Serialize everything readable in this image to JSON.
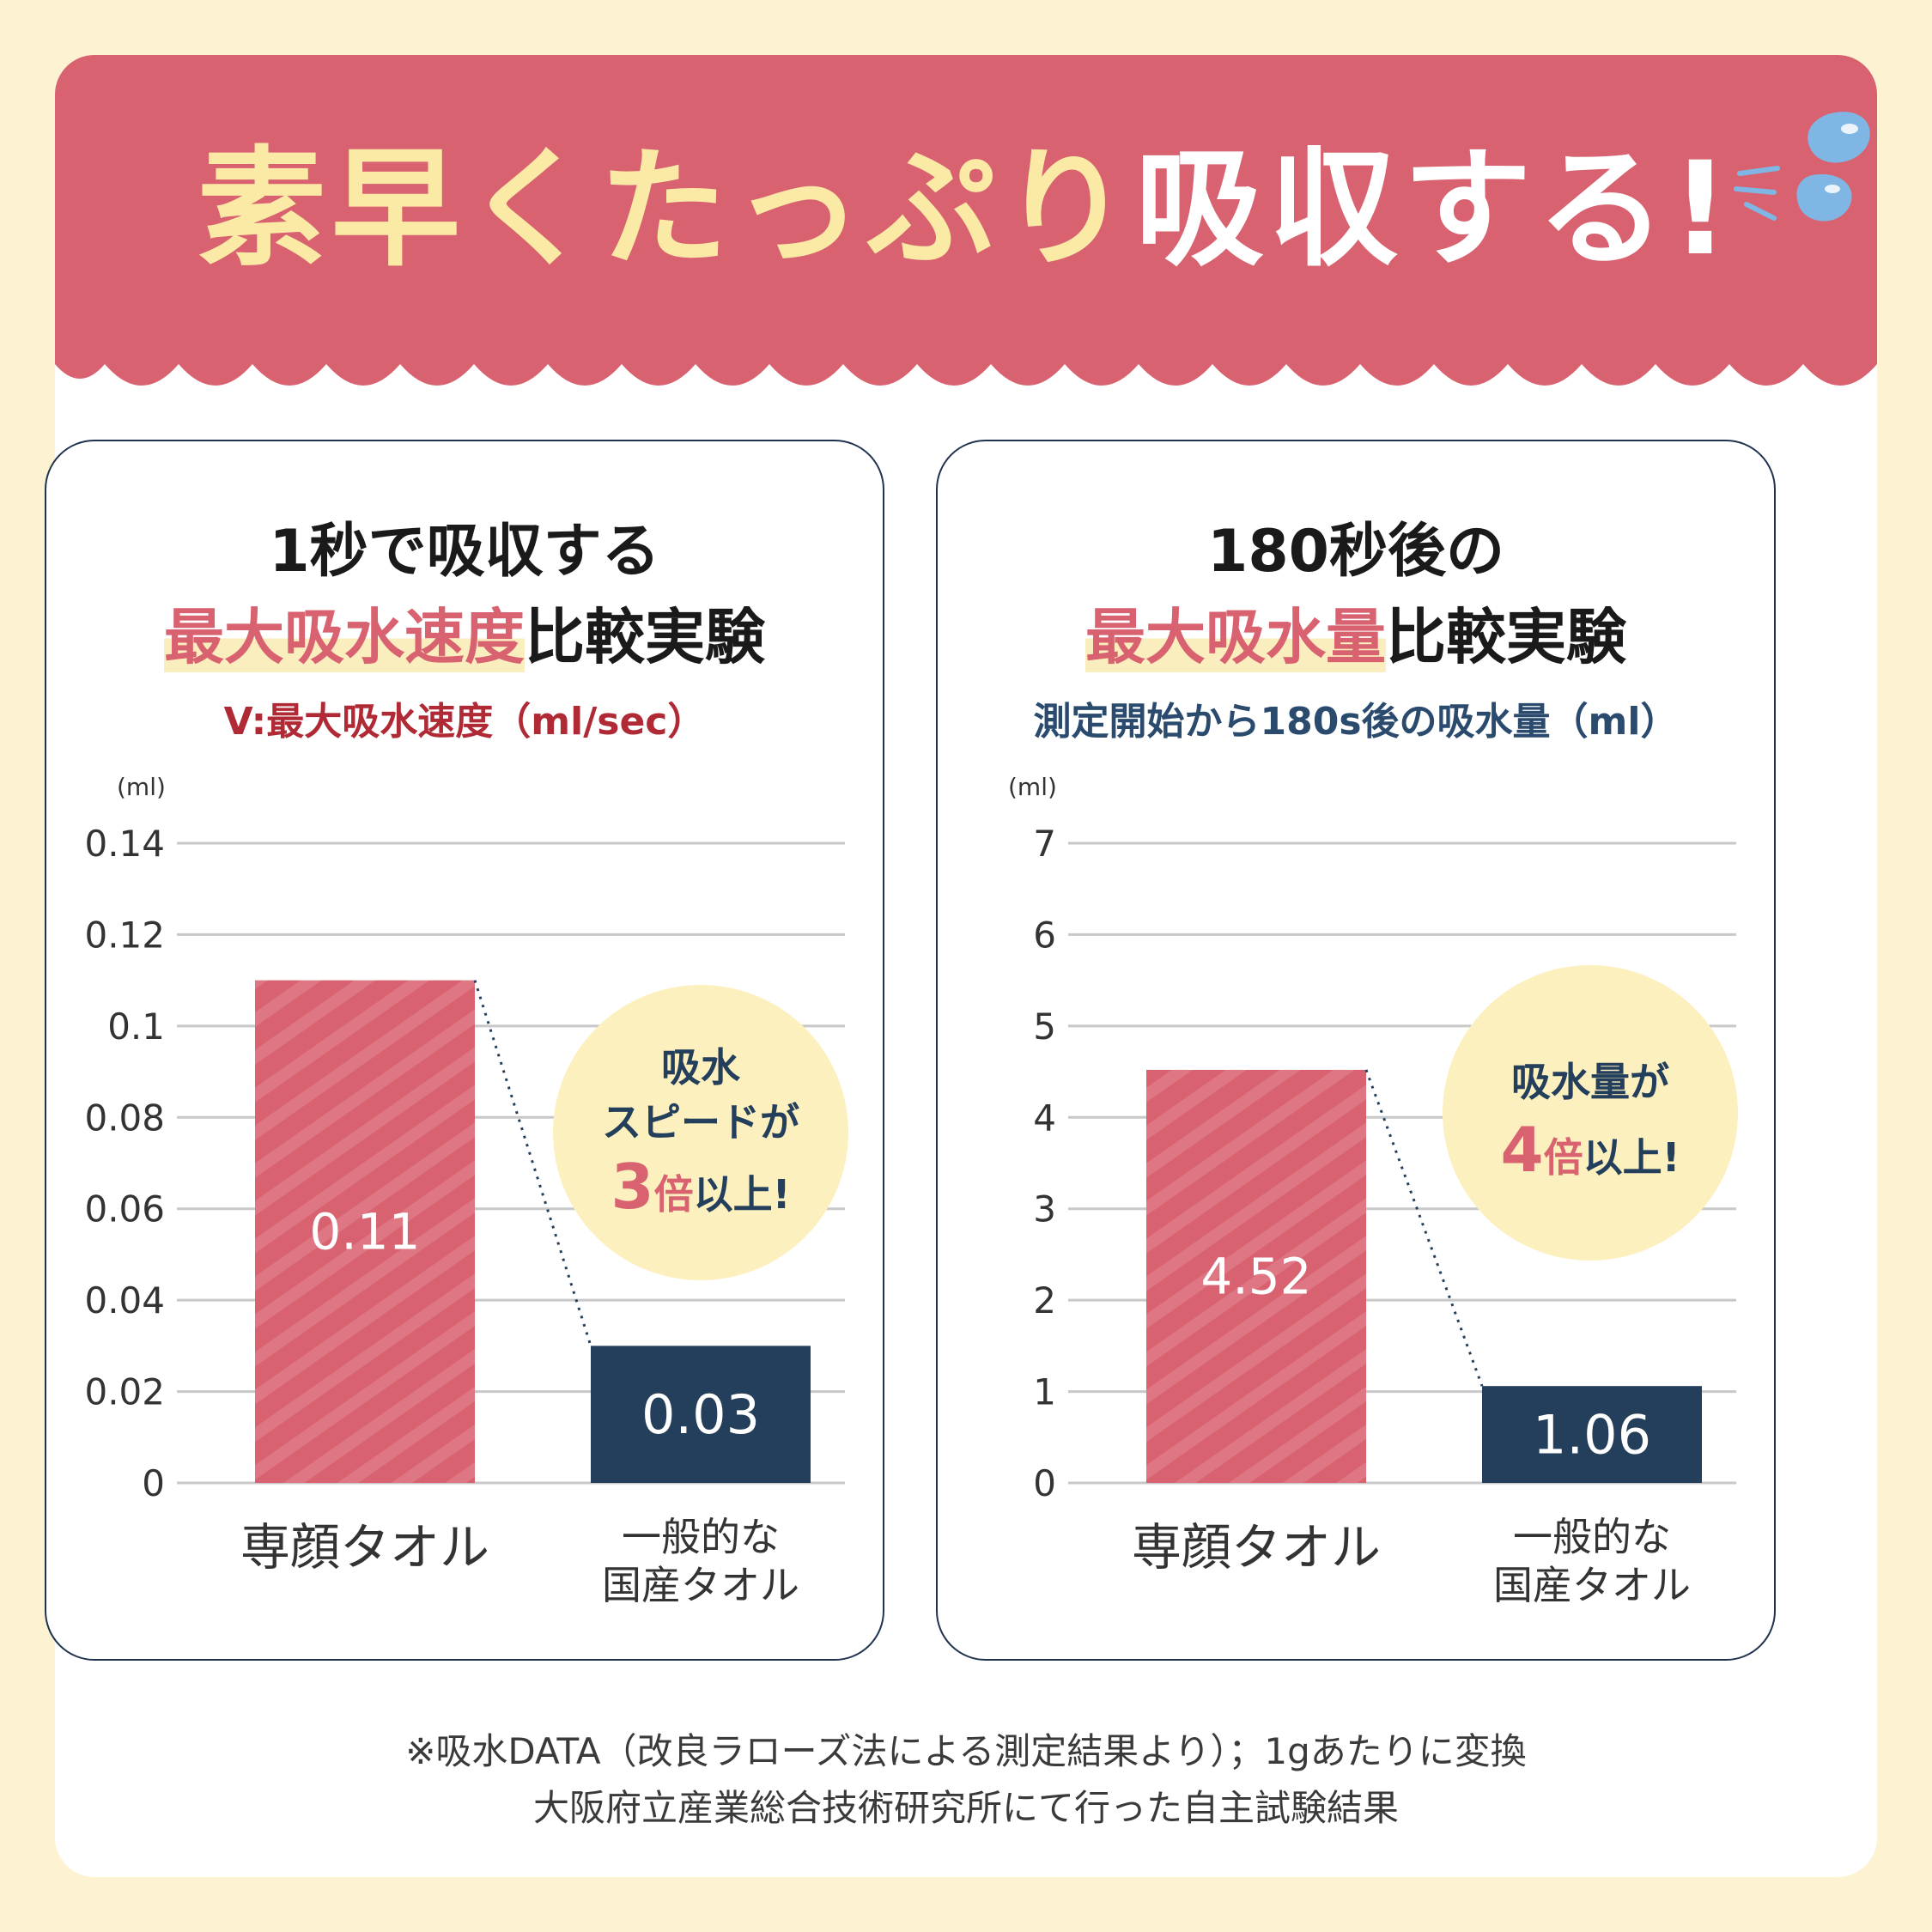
{
  "headline": {
    "part1": "素早くたっぷり",
    "part2": "吸収する!"
  },
  "colors": {
    "banner": "#d96270",
    "accent": "#d96270",
    "navy": "#243f5c",
    "badge": "#fdf0bf",
    "cream": "#fdf3d2"
  },
  "chart_data": [
    {
      "type": "bar",
      "title_line1": "1秒で吸収する",
      "title_line2_highlight": "最大吸水速度",
      "title_line2_rest": "比較実験",
      "subtitle": "V:最大吸水速度（ml/sec）",
      "unit_label": "(ml)",
      "categories": [
        "専顔タオル",
        "一般的な国産タオル"
      ],
      "category_lines": [
        [
          "専顔タオル"
        ],
        [
          "一般的な",
          "国産タオル"
        ]
      ],
      "values": [
        0.11,
        0.03
      ],
      "value_labels": [
        "0.11",
        "0.03"
      ],
      "ylim": [
        0,
        0.14
      ],
      "yticks": [
        0,
        0.02,
        0.04,
        0.06,
        0.08,
        0.1,
        0.12,
        0.14
      ],
      "ytick_labels": [
        "0",
        "0.02",
        "0.04",
        "0.06",
        "0.08",
        "0.1",
        "0.12",
        "0.14"
      ],
      "bar_colors": [
        "#d96270",
        "#243f5c"
      ],
      "grid": true,
      "badge": {
        "line1": "吸水",
        "line2": "スピードが",
        "number": "3",
        "suffix1": "倍",
        "suffix2": "以上!"
      }
    },
    {
      "type": "bar",
      "title_line1": "180秒後の",
      "title_line2_highlight": "最大吸水量",
      "title_line2_rest": "比較実験",
      "subtitle": "測定開始から180s後の吸水量（ml）",
      "unit_label": "(ml)",
      "categories": [
        "専顔タオル",
        "一般的な国産タオル"
      ],
      "category_lines": [
        [
          "専顔タオル"
        ],
        [
          "一般的な",
          "国産タオル"
        ]
      ],
      "values": [
        4.52,
        1.06
      ],
      "value_labels": [
        "4.52",
        "1.06"
      ],
      "ylim": [
        0,
        7
      ],
      "yticks": [
        0,
        1,
        2,
        3,
        4,
        5,
        6,
        7
      ],
      "ytick_labels": [
        "0",
        "1",
        "2",
        "3",
        "4",
        "5",
        "6",
        "7"
      ],
      "bar_colors": [
        "#d96270",
        "#243f5c"
      ],
      "grid": true,
      "badge": {
        "line1": "吸水量が",
        "line2": "",
        "number": "4",
        "suffix1": "倍",
        "suffix2": "以上!"
      }
    }
  ],
  "footnote": {
    "line1": "※吸水DATA（改良ラローズ法による測定結果より）；1gあたりに変換",
    "line2": "大阪府立産業総合技術研究所にて行った自主試験結果"
  }
}
